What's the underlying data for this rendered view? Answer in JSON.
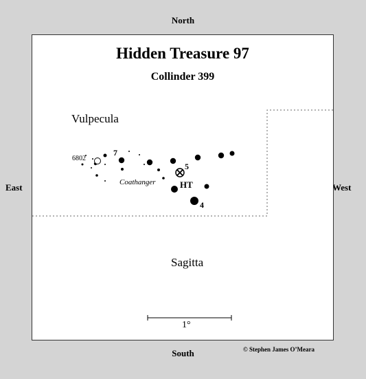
{
  "map": {
    "title": "Hidden Treasure 97",
    "subtitle": "Collinder 399",
    "constellations": [
      "Vulpecula",
      "Sagitta"
    ],
    "asterism": "Coathanger",
    "target_label": "HT",
    "star_labels": [
      "7",
      "5",
      "4"
    ],
    "object_label": "6802",
    "scale_label": "1°"
  },
  "compass": {
    "north": "North",
    "south": "South",
    "east": "East",
    "west": "West"
  },
  "credit": "© Stephen James O’Meara"
}
